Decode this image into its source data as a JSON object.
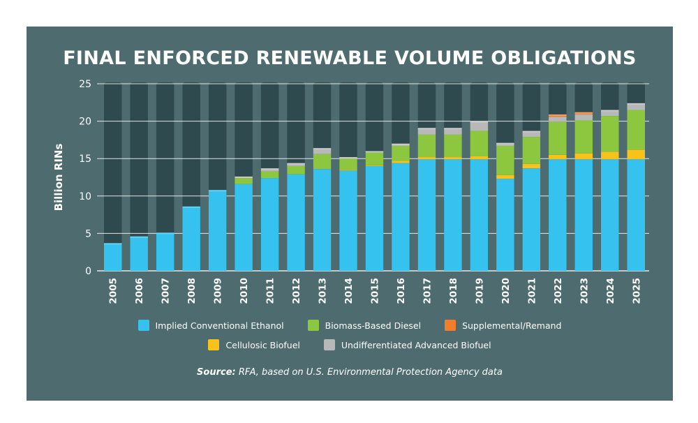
{
  "chart_data": {
    "type": "bar",
    "stacked": true,
    "title": "FINAL ENFORCED RENEWABLE VOLUME OBLIGATIONS",
    "xlabel": "",
    "ylabel": "Billion RINs",
    "ylim": [
      0,
      25
    ],
    "yticks": [
      "0",
      "5",
      "10",
      "15",
      "20",
      "25"
    ],
    "grid": true,
    "legend_position": "bottom",
    "categories": [
      "2005",
      "2006",
      "2007",
      "2008",
      "2009",
      "2010",
      "2011",
      "2012",
      "2013",
      "2014",
      "2015",
      "2016",
      "2017",
      "2018",
      "2019",
      "2020",
      "2021",
      "2022",
      "2023",
      "2024",
      "2025"
    ],
    "series": [
      {
        "name": "Implied Conventional Ethanol",
        "color": "#35c2ef",
        "values": [
          3.7,
          4.6,
          5.1,
          8.6,
          10.8,
          11.6,
          12.4,
          12.9,
          13.6,
          13.4,
          14.0,
          14.4,
          14.9,
          14.9,
          14.9,
          12.3,
          13.7,
          14.9,
          14.9,
          14.9,
          14.9
        ]
      },
      {
        "name": "Cellulosic Biofuel",
        "color": "#f7c21a",
        "values": [
          0,
          0,
          0,
          0,
          0,
          0,
          0,
          0,
          0,
          0.1,
          0.1,
          0.3,
          0.3,
          0.3,
          0.4,
          0.5,
          0.6,
          0.6,
          0.8,
          1.0,
          1.3
        ]
      },
      {
        "name": "Biomass-Based Diesel",
        "color": "#8dc63f",
        "values": [
          0,
          0,
          0,
          0,
          0,
          0.8,
          0.9,
          1.1,
          2.0,
          1.5,
          1.7,
          2.0,
          3.0,
          3.0,
          3.4,
          3.9,
          3.6,
          4.4,
          4.4,
          4.8,
          5.3
        ]
      },
      {
        "name": "Undifferentiated Advanced Biofuel",
        "color": "#b8b8b8",
        "values": [
          0,
          0,
          0,
          0,
          0,
          0.2,
          0.4,
          0.4,
          0.8,
          0.2,
          0.2,
          0.3,
          0.9,
          0.9,
          1.3,
          0.4,
          0.8,
          0.7,
          0.8,
          0.8,
          0.9
        ]
      },
      {
        "name": "Supplemental/Remand",
        "color": "#f07f2d",
        "values": [
          0,
          0,
          0,
          0,
          0,
          0,
          0,
          0,
          0,
          0,
          0,
          0,
          0,
          0,
          0,
          0,
          0,
          0.3,
          0.3,
          0,
          0
        ]
      }
    ]
  },
  "legend": {
    "row1": [
      "Implied Conventional Ethanol",
      "Biomass-Based Diesel",
      "Supplemental/Remand"
    ],
    "row2": [
      "Cellulosic Biofuel",
      "Undifferentiated Advanced Biofuel"
    ]
  },
  "source": {
    "label": "Source:",
    "text": "RFA, based on U.S. Environmental Protection Agency data"
  },
  "colors": {
    "panel_bg": "#4e6c6f",
    "column_bg": "#2e4a4e",
    "text": "#ffffff"
  }
}
